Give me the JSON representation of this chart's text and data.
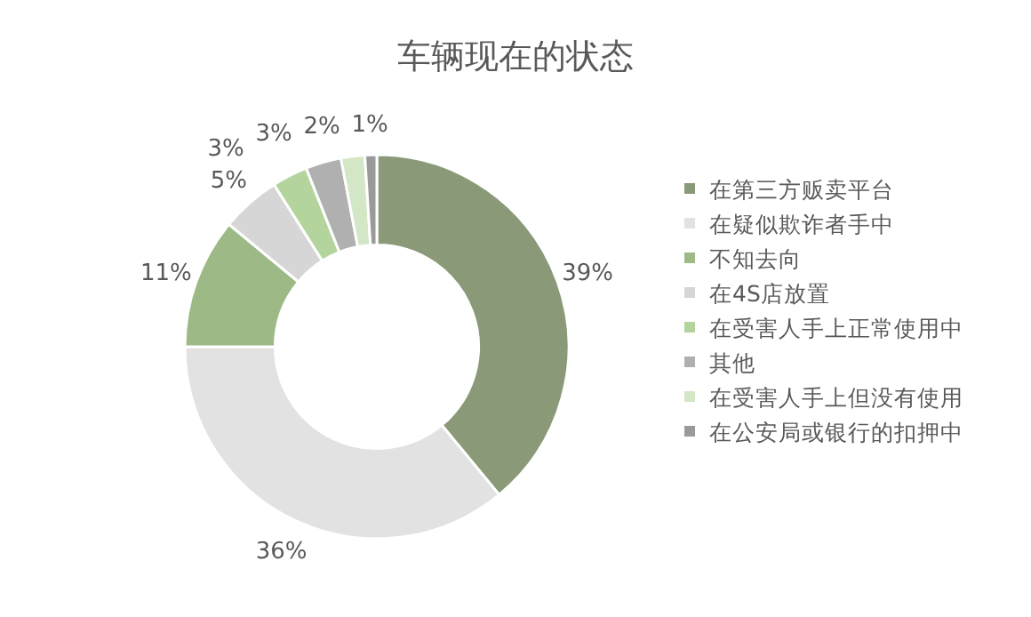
{
  "chart_data": {
    "type": "donut",
    "title": "车辆现在的状态",
    "categories": [
      "在第三方贩卖平台",
      "在疑似欺诈者手中",
      "不知去向",
      "在4S店放置",
      "在受害人手上正常使用中",
      "其他",
      "在受害人手上但没有使用",
      "在公安局或银行的扣押中"
    ],
    "values": [
      39,
      36,
      11,
      5,
      3,
      3,
      2,
      1
    ],
    "colors": [
      "#8a9a78",
      "#e2e2e2",
      "#9dba86",
      "#d6d6d6",
      "#b3d59d",
      "#b0b0b0",
      "#d3e6c6",
      "#9a9a9a"
    ],
    "value_labels": [
      "39%",
      "36%",
      "11%",
      "5%",
      "3%",
      "3%",
      "2%",
      "1%"
    ],
    "legend": "right"
  }
}
